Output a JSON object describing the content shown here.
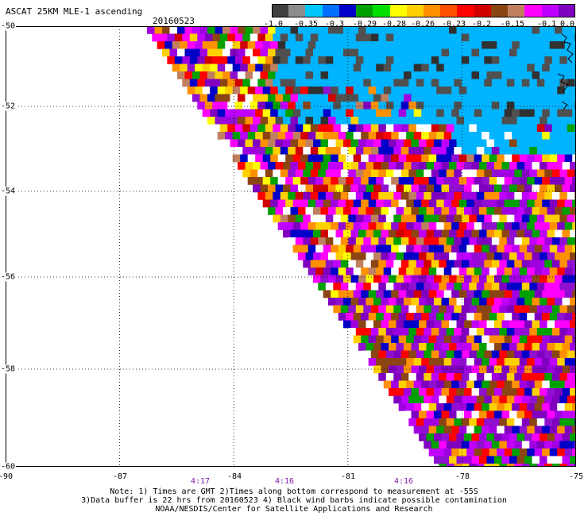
{
  "header": {
    "title": "ASCAT 25KM MLE-1 ascending",
    "date": "20160523"
  },
  "colorbar": {
    "labels": [
      "-1.0",
      "-0.35",
      "-0.3",
      "-0.29",
      "-0.28",
      "-0.26",
      "-0.23",
      "-0.2",
      "-0.15",
      "-0.1",
      "0.0"
    ],
    "colors": [
      "#404040",
      "#8c8c8c",
      "#00c8ff",
      "#0070ff",
      "#0000c8",
      "#00a000",
      "#00e000",
      "#ffff00",
      "#ffd000",
      "#ff9000",
      "#ff5000",
      "#ff0000",
      "#d00000",
      "#8b4513",
      "#c08060",
      "#ff00ff",
      "#c000ff",
      "#8000c0"
    ]
  },
  "map": {
    "lon_ticks": [
      "-90",
      "-87",
      "-84",
      "-81",
      "-78",
      "-75"
    ],
    "lat_ticks": [
      "-50",
      "-52",
      "-54",
      "-56",
      "-58",
      "-60"
    ],
    "times": [
      "4:17",
      "4:16",
      "4:16"
    ]
  },
  "notes": {
    "line1": "Note: 1) Times are GMT 2)Times along bottom correspond to measurement at -55S",
    "line2": "3)Data buffer is 22 hrs from 20160523 4) Black wind barbs indicate possible contamination",
    "line3": "NOAA/NESDIS/Center for Satellite Applications and Research"
  }
}
